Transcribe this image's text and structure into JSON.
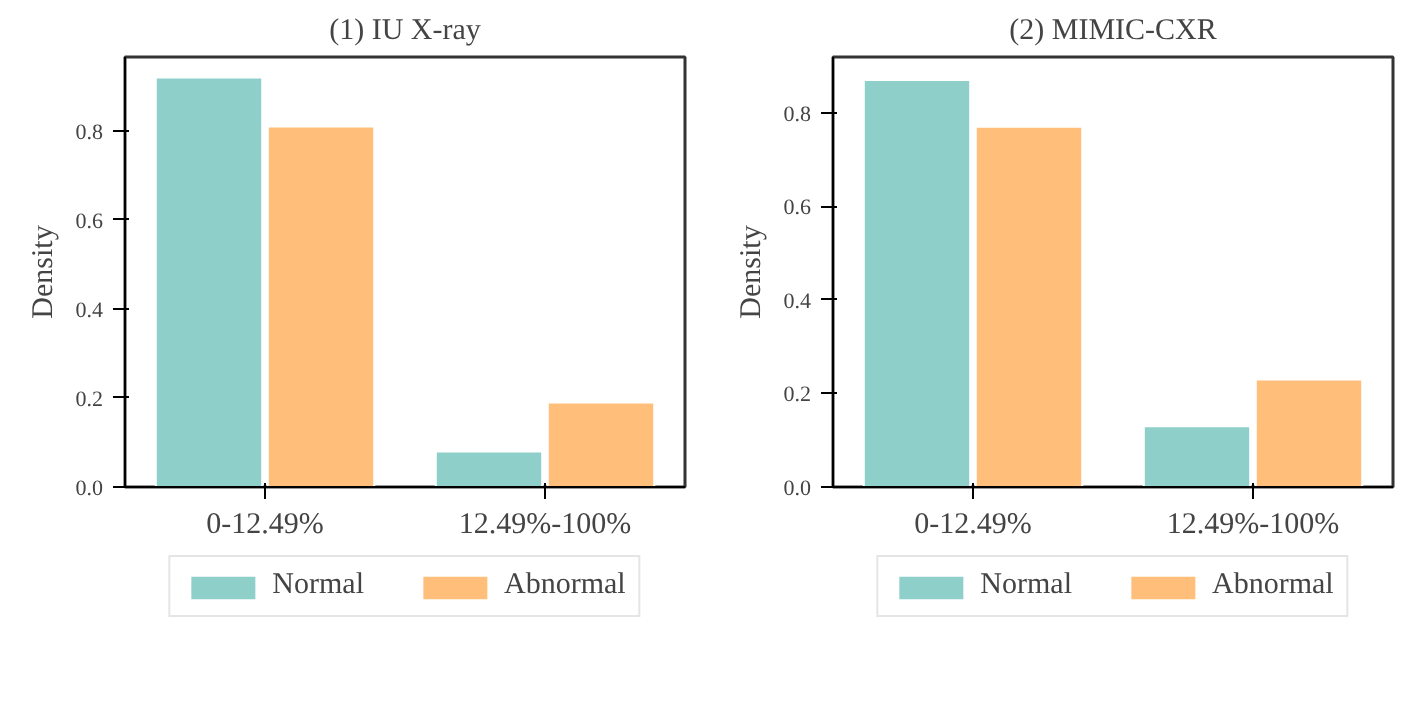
{
  "chart_data": [
    {
      "type": "bar",
      "title": "(1) IU X-ray",
      "ylabel": "Density",
      "categories": [
        "0-12.49%",
        "12.49%-100%"
      ],
      "series": [
        {
          "name": "Normal",
          "color": "#8ecfc9",
          "values": [
            0.92,
            0.08
          ]
        },
        {
          "name": "Abnormal",
          "color": "#ffbe7a",
          "values": [
            0.81,
            0.19
          ]
        }
      ],
      "ylim": [
        0,
        0.966
      ],
      "yticks": [
        {
          "value": 0,
          "label": "0.0"
        },
        0.2,
        0.4,
        0.6,
        0.8
      ],
      "legend": "bottom",
      "grid": false
    },
    {
      "type": "bar",
      "title": "(2) MIMIC-CXR",
      "ylabel": "Density",
      "categories": [
        "0-12.49%",
        "12.49%-100%"
      ],
      "series": [
        {
          "name": "Normal",
          "color": "#8ecfc9",
          "values": [
            0.87,
            0.13
          ]
        },
        {
          "name": "Abnormal",
          "color": "#ffbe7a",
          "values": [
            0.77,
            0.23
          ]
        }
      ],
      "ylim": [
        0,
        0.919
      ],
      "yticks": [
        {
          "value": 0,
          "label": "0.0"
        },
        0.2,
        0.4,
        0.6,
        0.8
      ],
      "legend": "bottom",
      "grid": false
    }
  ]
}
